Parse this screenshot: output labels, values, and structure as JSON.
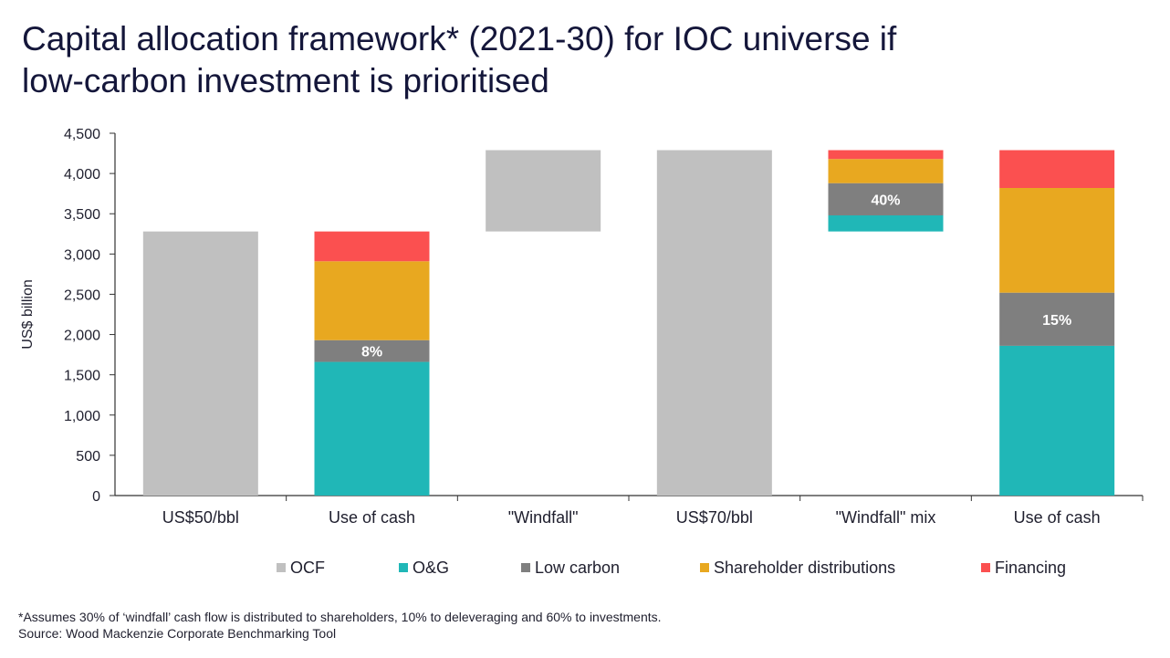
{
  "title_lines": [
    "Capital allocation framework* (2021-30) for IOC universe if",
    "low-carbon investment is prioritised"
  ],
  "footnote": "*Assumes 30% of ‘windfall’ cash flow is distributed to shareholders, 10% to deleveraging and 60% to investments.",
  "source": "Source: Wood Mackenzie Corporate Benchmarking Tool",
  "colors": {
    "OCF": "#c0c0c0",
    "O&G": "#20b7b7",
    "Low carbon": "#7f7f7f",
    "Shareholder distributions": "#e8a820",
    "Financing": "#fb5050"
  },
  "chart_data": {
    "type": "bar",
    "subtype": "stacked waterfall",
    "ylabel": "US$ billion",
    "xlabel": "",
    "ylim": [
      0,
      4500
    ],
    "yticks": [
      0,
      500,
      1000,
      1500,
      2000,
      2500,
      3000,
      3500,
      4000,
      4500
    ],
    "ytick_labels": [
      "0",
      "500",
      "1,000",
      "1,500",
      "2,000",
      "2,500",
      "3,000",
      "3,500",
      "4,000",
      "4,500"
    ],
    "grid": false,
    "legend_position": "bottom",
    "legend": [
      "OCF",
      "O&G",
      "Low carbon",
      "Shareholder distributions",
      "Financing"
    ],
    "categories": [
      "US$50/bbl",
      "Use of cash",
      "\"Windfall\"",
      "US$70/bbl",
      "\"Windfall\" mix",
      "Use of cash"
    ],
    "bars": [
      {
        "category": "US$50/bbl",
        "segments": [
          {
            "series": "OCF",
            "from": 0,
            "to": 3280
          }
        ]
      },
      {
        "category": "Use of cash",
        "segments": [
          {
            "series": "O&G",
            "from": 0,
            "to": 1660
          },
          {
            "series": "Low carbon",
            "from": 1660,
            "to": 1930,
            "label": "8%"
          },
          {
            "series": "Shareholder distributions",
            "from": 1930,
            "to": 2910
          },
          {
            "series": "Financing",
            "from": 2910,
            "to": 3280
          }
        ]
      },
      {
        "category": "\"Windfall\"",
        "segments": [
          {
            "series": "OCF",
            "from": 3280,
            "to": 4290
          }
        ]
      },
      {
        "category": "US$70/bbl",
        "segments": [
          {
            "series": "OCF",
            "from": 0,
            "to": 4290
          }
        ]
      },
      {
        "category": "\"Windfall\" mix",
        "segments": [
          {
            "series": "O&G",
            "from": 3280,
            "to": 3480
          },
          {
            "series": "Low carbon",
            "from": 3480,
            "to": 3880,
            "label": "40%"
          },
          {
            "series": "Shareholder distributions",
            "from": 3880,
            "to": 4180
          },
          {
            "series": "Financing",
            "from": 4180,
            "to": 4290
          }
        ]
      },
      {
        "category": "Use of cash",
        "segments": [
          {
            "series": "O&G",
            "from": 0,
            "to": 1860
          },
          {
            "series": "Low carbon",
            "from": 1860,
            "to": 2520,
            "label": "15%"
          },
          {
            "series": "Shareholder distributions",
            "from": 2520,
            "to": 3820
          },
          {
            "series": "Financing",
            "from": 3820,
            "to": 4290
          }
        ]
      }
    ]
  }
}
